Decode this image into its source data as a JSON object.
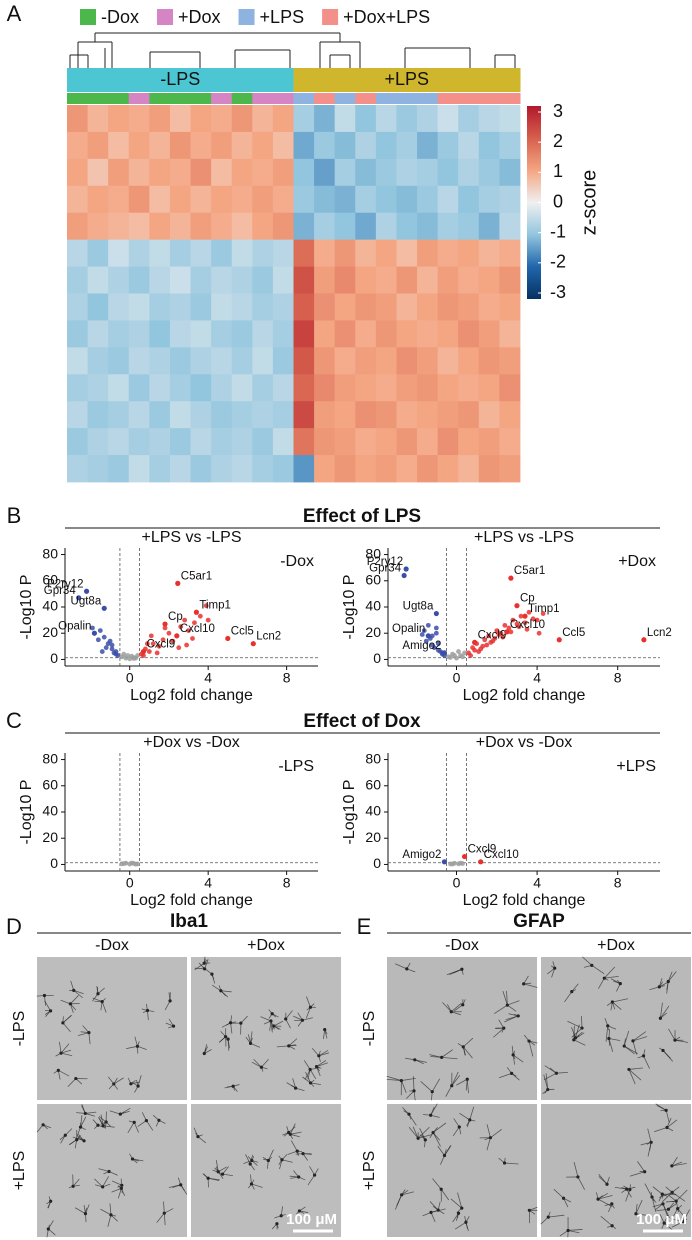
{
  "chart_data": [
    {
      "type": "heatmap",
      "legend": [
        {
          "name": "-Dox",
          "color": "#4cb84c"
        },
        {
          "name": "+Dox",
          "color": "#d685c4"
        },
        {
          "name": "+LPS",
          "color": "#8fb3e0"
        },
        {
          "name": "+Dox+LPS",
          "color": "#f4908a"
        }
      ],
      "conditions": [
        {
          "label": "-LPS",
          "color": "#4dc6d3"
        },
        {
          "label": "+LPS",
          "color": "#d0b62d"
        }
      ],
      "column_conditions": [
        0,
        0,
        0,
        0,
        0,
        0,
        0,
        0,
        0,
        0,
        0,
        1,
        1,
        1,
        1,
        1,
        1,
        1,
        1,
        1,
        1,
        1
      ],
      "column_groups": [
        0,
        0,
        0,
        1,
        0,
        0,
        0,
        1,
        0,
        1,
        1,
        2,
        3,
        2,
        3,
        2,
        2,
        2,
        3,
        3,
        3,
        3
      ],
      "values": [
        [
          1.2,
          0.8,
          1.0,
          0.9,
          1.1,
          0.7,
          1.0,
          0.9,
          1.2,
          0.8,
          1.0,
          -0.8,
          -1.2,
          -0.5,
          -1.0,
          -0.6,
          -0.9,
          -0.7,
          -0.4,
          -0.8,
          -0.6,
          -0.5
        ],
        [
          0.9,
          1.1,
          0.7,
          1.0,
          0.8,
          1.2,
          0.9,
          1.1,
          0.8,
          1.0,
          0.7,
          -1.3,
          -0.9,
          -1.1,
          -0.7,
          -1.0,
          -0.8,
          -1.2,
          -0.9,
          -0.6,
          -1.0,
          -0.8
        ],
        [
          1.0,
          0.6,
          1.1,
          0.8,
          1.0,
          0.9,
          1.3,
          0.7,
          1.0,
          0.9,
          1.1,
          -1.0,
          -1.4,
          -0.8,
          -1.1,
          -0.9,
          -0.7,
          -0.8,
          -1.0,
          -0.7,
          -0.9,
          -1.1
        ],
        [
          0.8,
          1.0,
          0.9,
          1.2,
          0.7,
          1.0,
          0.8,
          1.0,
          0.9,
          1.1,
          0.9,
          -0.9,
          -1.1,
          -1.2,
          -0.8,
          -1.0,
          -1.1,
          -0.9,
          -0.6,
          -1.0,
          -0.8,
          -0.7
        ],
        [
          1.1,
          0.9,
          0.8,
          0.7,
          1.0,
          0.8,
          1.1,
          0.9,
          0.7,
          1.0,
          1.2,
          -1.2,
          -0.8,
          -1.0,
          -1.3,
          -0.7,
          -1.0,
          -1.1,
          -0.8,
          -0.9,
          -1.2,
          -0.6
        ],
        [
          -0.6,
          -0.9,
          -0.4,
          -0.7,
          -0.5,
          -0.8,
          -0.6,
          -0.9,
          -0.5,
          -0.7,
          -0.6,
          1.8,
          0.9,
          1.2,
          0.8,
          1.0,
          0.7,
          1.1,
          0.9,
          1.0,
          0.8,
          0.9
        ],
        [
          -0.8,
          -0.5,
          -0.7,
          -0.9,
          -0.6,
          -0.4,
          -0.8,
          -0.6,
          -0.7,
          -0.9,
          -0.5,
          2.2,
          1.1,
          1.4,
          1.0,
          0.9,
          1.2,
          0.8,
          1.1,
          0.9,
          1.0,
          1.2
        ],
        [
          -0.7,
          -1.0,
          -0.6,
          -0.5,
          -0.8,
          -0.7,
          -0.9,
          -0.5,
          -0.6,
          -0.8,
          -0.7,
          2.0,
          1.3,
          1.0,
          1.2,
          1.1,
          0.8,
          1.0,
          1.2,
          1.1,
          0.9,
          1.0
        ],
        [
          -0.9,
          -0.6,
          -0.8,
          -0.7,
          -1.0,
          -0.6,
          -0.5,
          -0.8,
          -0.9,
          -0.6,
          -0.8,
          2.4,
          1.0,
          1.3,
          0.9,
          1.2,
          1.0,
          0.9,
          1.0,
          1.3,
          1.1,
          0.8
        ],
        [
          -0.5,
          -0.8,
          -0.9,
          -0.6,
          -0.7,
          -0.9,
          -0.7,
          -0.6,
          -0.8,
          -0.5,
          -0.9,
          2.1,
          1.2,
          0.9,
          1.1,
          1.0,
          1.3,
          1.1,
          0.8,
          1.0,
          1.2,
          1.1
        ],
        [
          -0.8,
          -0.7,
          -0.5,
          -0.9,
          -0.6,
          -0.8,
          -1.0,
          -0.7,
          -0.5,
          -0.8,
          -0.6,
          1.9,
          1.4,
          1.1,
          1.0,
          0.9,
          1.1,
          1.2,
          1.0,
          0.9,
          1.0,
          1.3
        ],
        [
          -0.6,
          -0.9,
          -0.8,
          -0.6,
          -0.9,
          -0.5,
          -0.7,
          -0.9,
          -0.8,
          -0.7,
          -0.8,
          2.3,
          1.1,
          1.0,
          1.3,
          1.2,
          0.9,
          1.0,
          1.1,
          1.2,
          0.8,
          1.0
        ],
        [
          -0.9,
          -0.7,
          -0.6,
          -0.8,
          -0.7,
          -0.9,
          -0.6,
          -0.8,
          -0.7,
          -0.9,
          -0.5,
          1.7,
          1.2,
          1.1,
          0.9,
          1.0,
          1.2,
          0.9,
          1.3,
          1.0,
          1.1,
          0.9
        ],
        [
          -0.7,
          -0.8,
          -0.9,
          -0.5,
          -0.8,
          -0.6,
          -0.9,
          -0.7,
          -0.6,
          -0.8,
          -0.9,
          -1.5,
          1.0,
          1.2,
          1.0,
          1.1,
          0.9,
          1.2,
          1.0,
          0.8,
          1.2,
          1.1
        ]
      ],
      "zlim": [
        -3,
        3
      ],
      "zticks": [
        -3,
        -2,
        -1,
        0,
        1,
        2,
        3
      ],
      "colorbar_label": "z-score"
    },
    {
      "type": "volcano",
      "subtitle": "+LPS vs -LPS",
      "corner_label": "-Dox",
      "xlabel": "Log2 fold change",
      "ylabel": "-Log10 P",
      "xlim": [
        -3.3,
        9.6
      ],
      "ylim": [
        -5,
        85
      ],
      "xticks": [
        0,
        4,
        8
      ],
      "yticks": [
        0,
        20,
        40,
        60,
        80
      ],
      "thresholds": {
        "x": [
          -0.5,
          0.5
        ],
        "y": 1.3
      },
      "series": [
        {
          "color": "#3b4fa8",
          "x": [
            -1.5,
            -1.1,
            -0.9,
            -1.6,
            -1.2,
            -0.8,
            -1.4,
            -0.7,
            -1.0,
            -0.6,
            -1.9,
            -1.3,
            -0.9,
            -0.7
          ],
          "y": [
            22,
            12,
            8,
            15,
            9,
            5,
            6,
            4,
            14,
            3,
            24,
            17,
            11,
            6
          ]
        },
        {
          "color": "#9e9e9e",
          "x": [
            -0.4,
            -0.2,
            0,
            0.2,
            0.4,
            -0.3,
            0.1,
            0.3,
            -0.1,
            0.2
          ],
          "y": [
            2,
            1,
            0.5,
            1.5,
            3,
            4,
            2.5,
            1,
            3,
            0.8
          ]
        },
        {
          "color": "#e8312e",
          "x": [
            0.6,
            0.8,
            1.0,
            1.2,
            1.5,
            1.7,
            2.0,
            2.2,
            2.6,
            2.8,
            3.0,
            3.3,
            3.6,
            3.9,
            1.1,
            1.4,
            0.9,
            2.5,
            3.2,
            0.7,
            1.8,
            2.9,
            4.0
          ],
          "y": [
            4,
            8,
            6,
            12,
            10,
            15,
            20,
            14,
            25,
            30,
            22,
            28,
            33,
            41,
            18,
            5,
            12,
            9,
            16,
            3,
            24,
            11,
            30
          ]
        }
      ],
      "annotations": [
        {
          "text": "P2ry12",
          "x": -2.2,
          "y": 52,
          "color": "#3b4fa8"
        },
        {
          "text": "Gpr34",
          "x": -2.6,
          "y": 47,
          "color": "#3b4fa8"
        },
        {
          "text": "Ugt8a",
          "x": -1.3,
          "y": 39,
          "color": "#3b4fa8"
        },
        {
          "text": "Opalin",
          "x": -1.8,
          "y": 20,
          "color": "#3b4fa8"
        },
        {
          "text": "Cxcl9",
          "x": 0.7,
          "y": 6,
          "color": "#e8312e"
        },
        {
          "text": "C5ar1",
          "x": 2.45,
          "y": 58,
          "color": "#e8312e"
        },
        {
          "text": "Timp1",
          "x": 3.4,
          "y": 36,
          "color": "#e8312e"
        },
        {
          "text": "Cp",
          "x": 1.8,
          "y": 27,
          "color": "#e8312e"
        },
        {
          "text": "Cxcl10",
          "x": 2.4,
          "y": 18,
          "color": "#e8312e"
        },
        {
          "text": "Ccl5",
          "x": 5.0,
          "y": 16,
          "color": "#e8312e"
        },
        {
          "text": "Lcn2",
          "x": 6.3,
          "y": 12,
          "color": "#e8312e"
        }
      ]
    },
    {
      "type": "volcano",
      "subtitle": "+LPS vs -LPS",
      "corner_label": "+Dox",
      "xlabel": "Log2 fold change",
      "ylabel": "-Log10 P",
      "xlim": [
        -3.4,
        10.1
      ],
      "ylim": [
        -5,
        85
      ],
      "xticks": [
        0,
        4,
        8
      ],
      "yticks": [
        0,
        20,
        40,
        60,
        80
      ],
      "thresholds": {
        "x": [
          -0.5,
          0.5
        ],
        "y": 1.3
      },
      "series": [
        {
          "color": "#3b4fa8",
          "x": [
            -1.6,
            -1.2,
            -0.9,
            -1.4,
            -1.1,
            -0.8,
            -1.5,
            -0.7,
            -1.0,
            -0.6,
            -1.3,
            -1.2,
            -0.9,
            -0.7,
            -1.7,
            -1.0
          ],
          "y": [
            22,
            18,
            12,
            26,
            9,
            6,
            14,
            4,
            20,
            3,
            16,
            11,
            7,
            5,
            19,
            24
          ]
        },
        {
          "color": "#9e9e9e",
          "x": [
            -0.4,
            -0.2,
            0,
            0.2,
            0.4,
            -0.3,
            0.1,
            0.3,
            -0.1
          ],
          "y": [
            2,
            4,
            1,
            3,
            5,
            1.5,
            6,
            2,
            3
          ]
        },
        {
          "color": "#e8312e",
          "x": [
            0.6,
            0.8,
            1.0,
            1.2,
            1.4,
            1.6,
            1.8,
            2.0,
            2.2,
            2.4,
            2.6,
            2.8,
            3.0,
            3.2,
            3.4,
            3.6,
            3.8,
            4.0,
            4.3,
            1.1,
            1.5,
            1.9,
            2.3,
            2.7,
            3.1,
            0.7,
            0.9,
            1.3,
            1.7,
            2.1,
            3.5,
            4.1
          ],
          "y": [
            5,
            9,
            12,
            8,
            15,
            18,
            14,
            22,
            20,
            26,
            24,
            30,
            27,
            33,
            28,
            36,
            31,
            30,
            35,
            6,
            11,
            16,
            17,
            21,
            25,
            3,
            7,
            10,
            13,
            19,
            23,
            20
          ]
        }
      ],
      "annotations": [
        {
          "text": "P2ry12",
          "x": -2.5,
          "y": 69,
          "color": "#3b4fa8"
        },
        {
          "text": "Gpr34",
          "x": -2.6,
          "y": 64,
          "color": "#3b4fa8"
        },
        {
          "text": "Ugt8a",
          "x": -1.0,
          "y": 35,
          "color": "#3b4fa8"
        },
        {
          "text": "Opalin",
          "x": -1.4,
          "y": 18,
          "color": "#3b4fa8"
        },
        {
          "text": "Amigo2",
          "x": -0.6,
          "y": 5,
          "color": "#3b4fa8"
        },
        {
          "text": "Cxcl9",
          "x": 0.9,
          "y": 13,
          "color": "#e8312e"
        },
        {
          "text": "C5ar1",
          "x": 2.7,
          "y": 62,
          "color": "#e8312e"
        },
        {
          "text": "Cp",
          "x": 3.0,
          "y": 41,
          "color": "#e8312e"
        },
        {
          "text": "Timp1",
          "x": 3.4,
          "y": 33,
          "color": "#e8312e"
        },
        {
          "text": "Cxcl10",
          "x": 2.5,
          "y": 21,
          "color": "#e8312e"
        },
        {
          "text": "Ccl5",
          "x": 5.1,
          "y": 15,
          "color": "#e8312e"
        },
        {
          "text": "Lcn2",
          "x": 9.3,
          "y": 15,
          "color": "#e8312e"
        }
      ]
    },
    {
      "type": "volcano",
      "subtitle": "+Dox vs -Dox",
      "corner_label": "-LPS",
      "xlabel": "Log2 fold change",
      "ylabel": "-Log10 P",
      "xlim": [
        -3.3,
        9.6
      ],
      "ylim": [
        -5,
        85
      ],
      "xticks": [
        0,
        4,
        8
      ],
      "yticks": [
        0,
        20,
        40,
        60,
        80
      ],
      "thresholds": {
        "x": [
          -0.5,
          0.5
        ],
        "y": 1.3
      },
      "series": [
        {
          "color": "#9e9e9e",
          "x": [
            -0.4,
            -0.2,
            0,
            0.2,
            0.4,
            -0.3,
            0.1,
            0.3
          ],
          "y": [
            0.5,
            1,
            0.3,
            0.8,
            0.4,
            0.6,
            1.1,
            0.2
          ]
        }
      ],
      "annotations": []
    },
    {
      "type": "volcano",
      "subtitle": "+Dox vs -Dox",
      "corner_label": "+LPS",
      "xlabel": "Log2 fold change",
      "ylabel": "-Log10 P",
      "xlim": [
        -3.4,
        10.1
      ],
      "ylim": [
        -5,
        85
      ],
      "xticks": [
        0,
        4,
        8
      ],
      "yticks": [
        0,
        20,
        40,
        60,
        80
      ],
      "thresholds": {
        "x": [
          -0.5,
          0.5
        ],
        "y": 1.3
      },
      "series": [
        {
          "color": "#9e9e9e",
          "x": [
            -0.3,
            -0.1,
            0.1,
            0.3,
            0.2,
            -0.2
          ],
          "y": [
            0.4,
            0.9,
            0.5,
            0.7,
            1,
            0.3
          ]
        }
      ],
      "annotations": [
        {
          "text": "Cxcl9",
          "x": 0.4,
          "y": 6,
          "color": "#e8312e"
        },
        {
          "text": "Amigo2",
          "x": -0.6,
          "y": 2,
          "color": "#3b4fa8"
        },
        {
          "text": "Cxcl10",
          "x": 1.2,
          "y": 2,
          "color": "#e8312e"
        }
      ]
    }
  ],
  "figure": {
    "panel_letters": [
      "A",
      "B",
      "C",
      "D",
      "E"
    ],
    "headings": [
      "Effect of LPS",
      "Effect of Dox"
    ],
    "micrographs": [
      {
        "title": "Iba1",
        "columns": [
          "-Dox",
          "+Dox"
        ],
        "rows": [
          "-LPS",
          "+LPS"
        ],
        "scale_bar": "100 μM"
      },
      {
        "title": "GFAP",
        "columns": [
          "-Dox",
          "+Dox"
        ],
        "rows": [
          "-LPS",
          "+LPS"
        ],
        "scale_bar": "100 μM"
      }
    ]
  }
}
